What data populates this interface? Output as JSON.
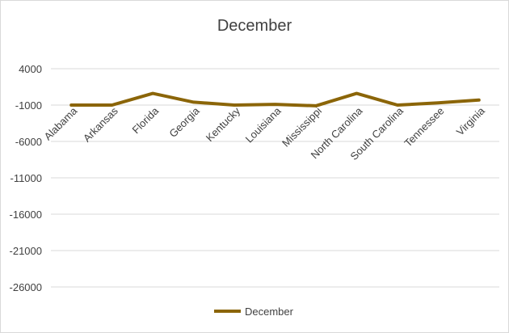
{
  "chart_data": {
    "type": "line",
    "title": "December",
    "categories": [
      "Alabama",
      "Arkansas",
      "Florida",
      "Georgia",
      "Kentucky",
      "Louisiana",
      "Mississippi",
      "North Carolina",
      "South Carolina",
      "Tennessee",
      "Virginia"
    ],
    "series": [
      {
        "name": "December",
        "color": "#8B6508",
        "values": [
          -1000,
          -1000,
          600,
          -600,
          -1000,
          -900,
          -1100,
          600,
          -1000,
          -700,
          -300
        ]
      }
    ],
    "yticks": [
      4000,
      -1000,
      -6000,
      -11000,
      -16000,
      -21000,
      -26000
    ],
    "ylim": [
      -31000,
      4000
    ],
    "grid": true,
    "legend": "bottom"
  }
}
